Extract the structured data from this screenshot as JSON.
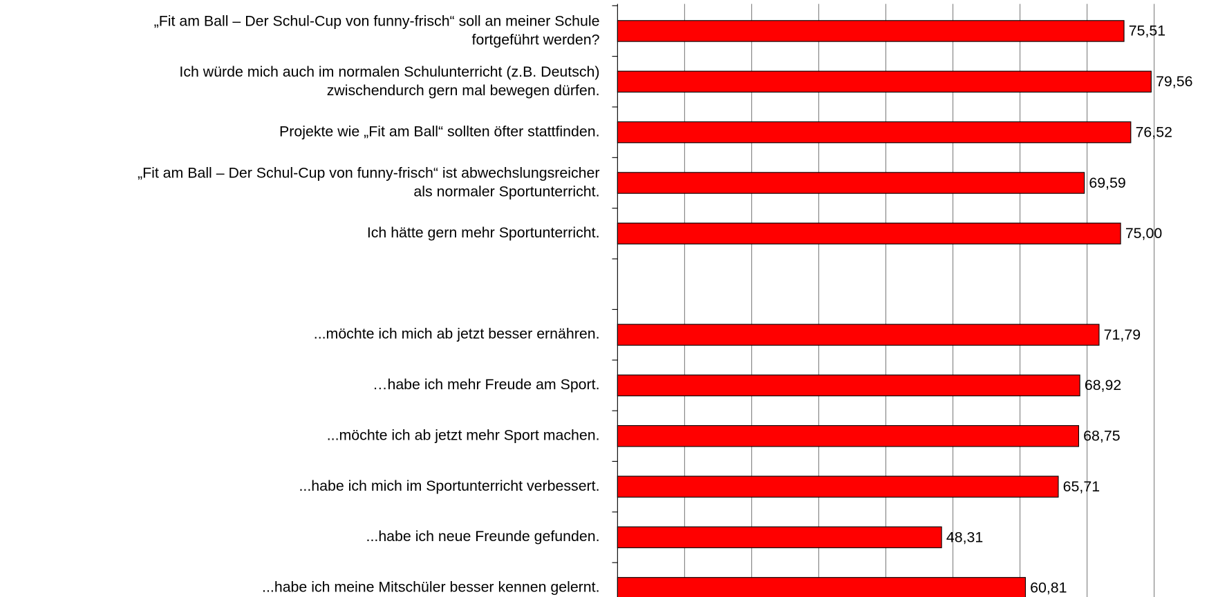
{
  "chart_data": {
    "type": "bar",
    "orientation": "horizontal",
    "categories": [
      "„Fit am Ball – Der Schul-Cup von funny-frisch“ soll an meiner Schule\nfortgeführt werden?",
      "Ich würde mich auch im normalen Schulunterricht (z.B. Deutsch)\nzwischendurch gern mal bewegen dürfen.",
      "Projekte wie „Fit am Ball“ sollten öfter stattfinden.",
      "„Fit am Ball – Der Schul-Cup von funny-frisch“ ist abwechslungsreicher\nals normaler Sportunterricht.",
      "Ich hätte gern mehr Sportunterricht.",
      null,
      "...möchte ich mich ab jetzt besser ernähren.",
      "…habe ich mehr Freude am Sport.",
      "...möchte ich ab jetzt mehr Sport machen.",
      "...habe ich mich im Sportunterricht verbessert.",
      "...habe ich neue Freunde gefunden.",
      "...habe ich meine Mitschüler besser kennen gelernt."
    ],
    "values": [
      75.51,
      79.56,
      76.52,
      69.59,
      75.0,
      null,
      71.79,
      68.92,
      68.75,
      65.71,
      48.31,
      60.81
    ],
    "value_labels": [
      "75,51",
      "79,56",
      "76,52",
      "69,59",
      "75,00",
      null,
      "71,79",
      "68,92",
      "68,75",
      "65,71",
      "48,31",
      "60,81"
    ],
    "color": "#ff0000",
    "xlim": [
      0,
      80
    ],
    "xticks": [
      0,
      10,
      20,
      30,
      40,
      50,
      60,
      70,
      80
    ],
    "grid": true
  }
}
